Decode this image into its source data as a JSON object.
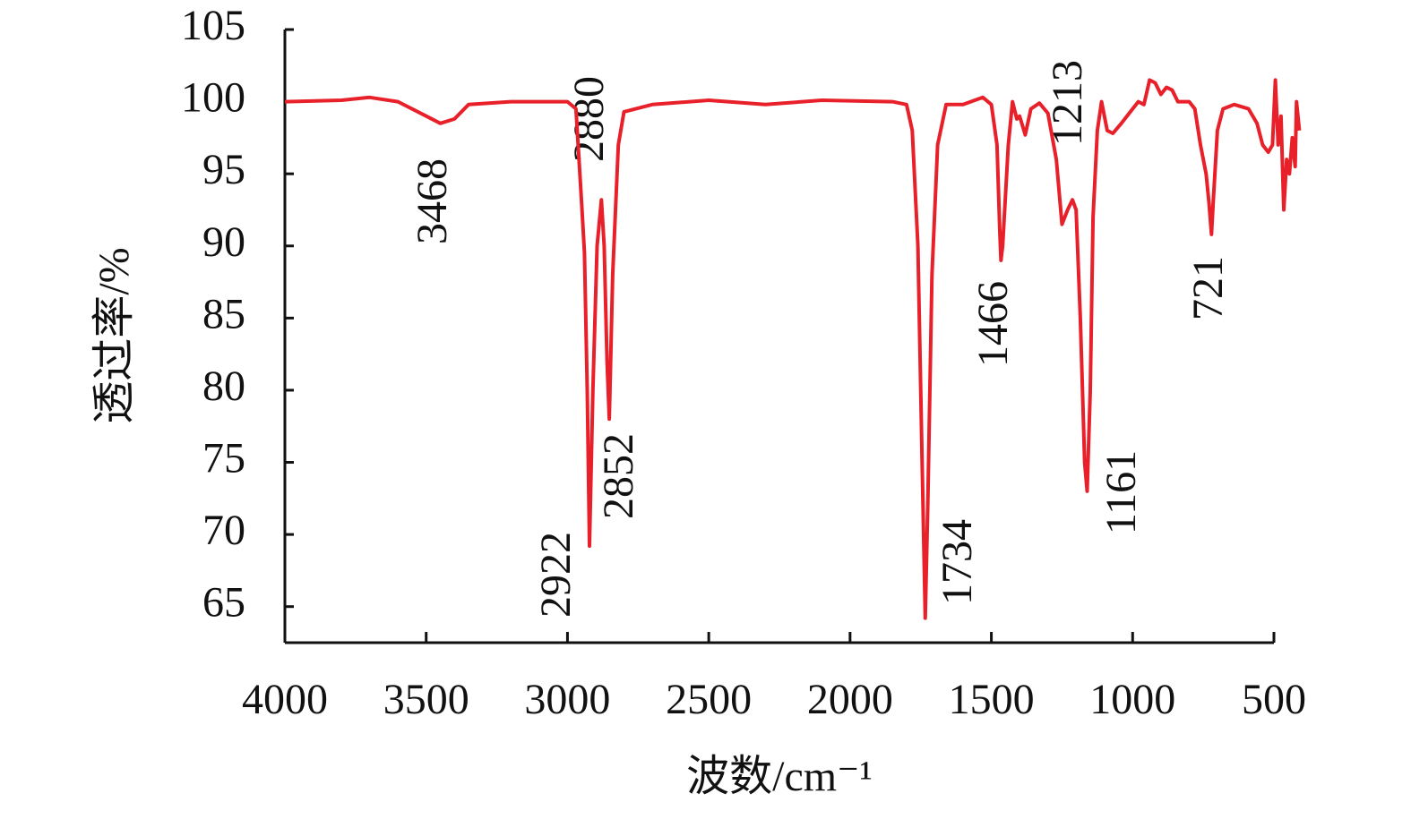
{
  "chart_data": {
    "type": "line",
    "xlabel": "波数/cm⁻¹",
    "ylabel": "透过率/%",
    "xlim": [
      4000,
      500
    ],
    "ylim": [
      62.5,
      105
    ],
    "xticks": [
      4000,
      3500,
      3000,
      2500,
      2000,
      1500,
      1000,
      500
    ],
    "yticks": [
      65,
      70,
      75,
      80,
      85,
      90,
      95,
      100,
      105
    ],
    "annotations": [
      "3468",
      "2880",
      "2922",
      "2852",
      "1734",
      "1466",
      "1213",
      "1161",
      "721"
    ],
    "series": [
      {
        "color": "#e8202a",
        "x": [
          4000,
          3800,
          3700,
          3600,
          3500,
          3450,
          3400,
          3350,
          3200,
          3000,
          2970,
          2950,
          2940,
          2930,
          2922,
          2910,
          2895,
          2880,
          2870,
          2860,
          2852,
          2840,
          2820,
          2800,
          2700,
          2500,
          2300,
          2100,
          1850,
          1800,
          1780,
          1760,
          1745,
          1734,
          1725,
          1710,
          1690,
          1660,
          1600,
          1530,
          1500,
          1480,
          1470,
          1466,
          1460,
          1440,
          1425,
          1410,
          1400,
          1380,
          1360,
          1330,
          1300,
          1270,
          1250,
          1230,
          1213,
          1200,
          1185,
          1170,
          1161,
          1150,
          1140,
          1125,
          1110,
          1090,
          1070,
          1040,
          1000,
          980,
          960,
          940,
          920,
          900,
          880,
          860,
          840,
          800,
          780,
          760,
          740,
          730,
          721,
          715,
          700,
          680,
          640,
          590,
          560,
          540,
          520,
          505,
          495,
          485,
          475,
          465,
          455,
          445,
          435,
          425,
          420,
          410
        ],
        "values": [
          100,
          100.1,
          100.3,
          100,
          99,
          98.5,
          98.8,
          99.8,
          100,
          100,
          99.5,
          93,
          89.5,
          80,
          69.2,
          80,
          90,
          93.2,
          90,
          82,
          78,
          88,
          97,
          99.3,
          99.8,
          100.1,
          99.8,
          100.1,
          100,
          99.8,
          98,
          90,
          75,
          64.2,
          72,
          88,
          97,
          99.8,
          99.8,
          100.3,
          99.8,
          97,
          91,
          89,
          90,
          97,
          100,
          98.8,
          99,
          97.7,
          99.5,
          99.9,
          99.2,
          96,
          91.5,
          92.5,
          93.2,
          92.5,
          85,
          75,
          73,
          80,
          92,
          98,
          100,
          98,
          97.8,
          98.5,
          99.5,
          100,
          99.8,
          101.5,
          101.3,
          100.5,
          101,
          100.8,
          100,
          100,
          99.5,
          97,
          95,
          93,
          90.8,
          93,
          98,
          99.5,
          99.8,
          99.5,
          98.5,
          97,
          96.5,
          97,
          101.5,
          97,
          99,
          92.5,
          96,
          95,
          97.5,
          95.5,
          100,
          98
        ]
      }
    ]
  }
}
